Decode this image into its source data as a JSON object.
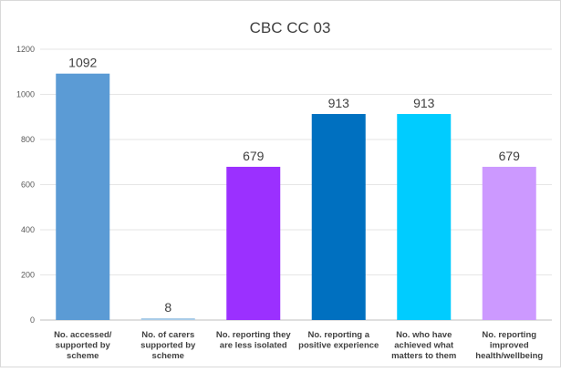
{
  "chart_data": {
    "type": "bar",
    "title": "CBC CC 03",
    "categories": [
      [
        "No. accessed/",
        "supported by",
        "scheme"
      ],
      [
        "No. of carers",
        "supported by",
        "scheme"
      ],
      [
        "No. reporting they",
        "are less isolated"
      ],
      [
        "No. reporting a",
        "positive experience"
      ],
      [
        "No. who have",
        "achieved what",
        "matters to them"
      ],
      [
        "No. reporting",
        "improved",
        "health/wellbeing"
      ]
    ],
    "values": [
      1092,
      8,
      679,
      913,
      913,
      679
    ],
    "data_labels": [
      "1092",
      "8",
      "679",
      "913",
      "913",
      "679"
    ],
    "colors": [
      "#5b9bd5",
      "#a9cce8",
      "#9b30ff",
      "#0070c0",
      "#00ccff",
      "#cc99ff"
    ],
    "ylim": [
      0,
      1200
    ],
    "yticks": [
      0,
      200,
      400,
      600,
      800,
      1000,
      1200
    ],
    "ytick_labels": [
      "0",
      "200",
      "400",
      "600",
      "800",
      "1000",
      "1200"
    ],
    "grid": true,
    "legend": "none"
  }
}
